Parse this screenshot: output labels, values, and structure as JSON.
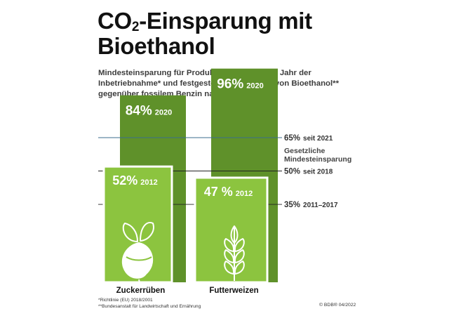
{
  "title": {
    "prefix": "CO",
    "sub": "2",
    "rest": "-Einsparung mit",
    "line2": "Bioethanol"
  },
  "subtitle": {
    "line1": "Mindesteinsparung für Produktionsanlagen mit Jahr der",
    "line2": "Inbetriebnahme* und festgestellte Einsparung von Bioethanol**",
    "line3": "gegenüber fossilem Benzin nach Rohstoff"
  },
  "chart_data": {
    "type": "bar",
    "ylim": [
      0,
      100
    ],
    "categories": [
      "Zuckerrüben",
      "Futterweizen"
    ],
    "icons": [
      "sugar-beet-icon",
      "wheat-ear-icon"
    ],
    "series": [
      {
        "label_value": "84%",
        "label_year": "2020",
        "values": [
          84,
          96
        ],
        "labels": [
          [
            "84%",
            "2020"
          ],
          [
            "96%",
            "2020"
          ]
        ],
        "color": "#5f912a"
      },
      {
        "values": [
          52,
          47
        ],
        "labels": [
          [
            "52%",
            "2012"
          ],
          [
            "47 %",
            "2012"
          ]
        ],
        "color": "#8cc43f"
      }
    ],
    "reference_lines": [
      {
        "value": 65,
        "label": "65% seit 2021",
        "color": "#3b6e8c"
      },
      {
        "value": 50,
        "label": "50% seit 2018",
        "color": "#222222"
      },
      {
        "value": 35,
        "label": "35% 2011–2017",
        "color": "#222222"
      }
    ],
    "reference_header": [
      "Gesetzliche",
      "Mindesteinsparung"
    ]
  },
  "footnotes": {
    "line1": "*Richtlinie (EU) 2018/2001",
    "line2": "**Bundesanstalt für Landwirtschaft und Ernährung"
  },
  "credit": "© BDB® 04/2022",
  "colors": {
    "dark_green": "#5f912a",
    "light_green": "#8cc43f",
    "line_blue": "#3b6e8c"
  }
}
